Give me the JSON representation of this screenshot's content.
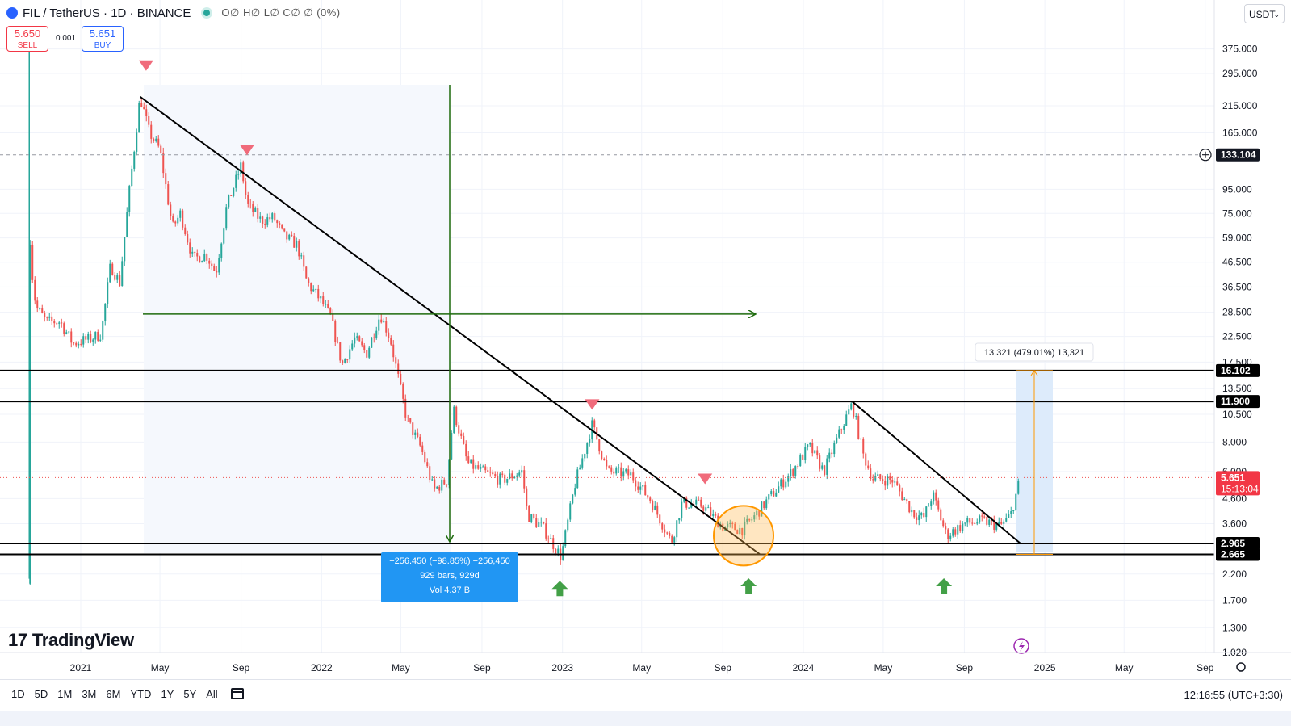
{
  "header": {
    "symbol": "FIL / TetherUS · 1D · BINANCE",
    "ohlc": "O∅ H∅ L∅ C∅ ∅ (0%)"
  },
  "trade": {
    "sell_price": "5.650",
    "sell_label": "SELL",
    "spread": "0.001",
    "buy_price": "5.651",
    "buy_label": "BUY"
  },
  "currency": "USDT",
  "logo_text": "TradingView",
  "ranges": [
    "1D",
    "5D",
    "1M",
    "3M",
    "6M",
    "YTD",
    "1Y",
    "5Y",
    "All"
  ],
  "clock": "12:16:55 (UTC+3:30)",
  "colors": {
    "up": "#26a69a",
    "down": "#ef5350",
    "trendline": "#000000",
    "measure": "#2196f3",
    "arrow_green": "#1e6b0d",
    "projection": "#ff9800"
  },
  "chart_data": {
    "type": "candlestick",
    "scale": "log",
    "x_ticks": [
      "2021",
      "May",
      "Sep",
      "2022",
      "May",
      "Sep",
      "2023",
      "May",
      "Sep",
      "2024",
      "May",
      "Sep",
      "2025",
      "May",
      "Sep"
    ],
    "y_ticks": [
      "375.000",
      "295.000",
      "215.000",
      "165.000",
      "95.000",
      "75.000",
      "59.000",
      "46.500",
      "36.500",
      "28.500",
      "22.500",
      "17.500",
      "13.500",
      "10.500",
      "8.000",
      "6.000",
      "4.600",
      "3.600",
      "2.200",
      "1.700",
      "1.300",
      "1.020"
    ],
    "y_range": [
      0.95,
      480
    ],
    "path": [
      [
        "2020-10-15",
        2.0
      ],
      [
        "2020-10-16",
        60
      ],
      [
        "2020-10-20",
        40
      ],
      [
        "2020-10-25",
        30
      ],
      [
        "2020-11-10",
        26
      ],
      [
        "2020-12-01",
        26
      ],
      [
        "2020-12-20",
        21
      ],
      [
        "2021-01-15",
        22
      ],
      [
        "2021-02-01",
        23
      ],
      [
        "2021-02-15",
        45
      ],
      [
        "2021-03-01",
        38
      ],
      [
        "2021-03-15",
        90
      ],
      [
        "2021-04-01",
        235
      ],
      [
        "2021-04-15",
        165
      ],
      [
        "2021-05-01",
        140
      ],
      [
        "2021-05-20",
        65
      ],
      [
        "2021-06-01",
        75
      ],
      [
        "2021-06-20",
        48
      ],
      [
        "2021-07-10",
        50
      ],
      [
        "2021-07-25",
        42
      ],
      [
        "2021-08-10",
        80
      ],
      [
        "2021-09-01",
        120
      ],
      [
        "2021-09-10",
        82
      ],
      [
        "2021-10-01",
        70
      ],
      [
        "2021-10-20",
        72
      ],
      [
        "2021-11-05",
        60
      ],
      [
        "2021-11-25",
        55
      ],
      [
        "2021-12-10",
        38
      ],
      [
        "2021-12-31",
        32
      ],
      [
        "2022-01-15",
        27
      ],
      [
        "2022-02-01",
        17
      ],
      [
        "2022-02-20",
        22
      ],
      [
        "2022-03-10",
        19
      ],
      [
        "2022-03-31",
        28
      ],
      [
        "2022-04-15",
        22
      ],
      [
        "2022-05-10",
        10
      ],
      [
        "2022-06-01",
        7.5
      ],
      [
        "2022-06-20",
        5.0
      ],
      [
        "2022-07-10",
        5.5
      ],
      [
        "2022-07-20",
        11.0
      ],
      [
        "2022-08-10",
        6.5
      ],
      [
        "2022-09-01",
        6.0
      ],
      [
        "2022-10-01",
        5.5
      ],
      [
        "2022-11-01",
        6.0
      ],
      [
        "2022-11-09",
        3.9
      ],
      [
        "2022-12-01",
        3.5
      ],
      [
        "2022-12-30",
        2.6
      ],
      [
        "2023-01-20",
        5.3
      ],
      [
        "2023-02-15",
        9.5
      ],
      [
        "2023-03-10",
        6.0
      ],
      [
        "2023-04-15",
        5.8
      ],
      [
        "2023-05-15",
        4.5
      ],
      [
        "2023-06-15",
        3.0
      ],
      [
        "2023-07-01",
        4.4
      ],
      [
        "2023-08-01",
        4.3
      ],
      [
        "2023-09-01",
        3.5
      ],
      [
        "2023-10-01",
        3.4
      ],
      [
        "2023-10-20",
        3.9
      ],
      [
        "2023-11-15",
        4.8
      ],
      [
        "2023-12-15",
        6.0
      ],
      [
        "2024-01-10",
        7.7
      ],
      [
        "2024-02-01",
        6.0
      ],
      [
        "2024-03-01",
        9.5
      ],
      [
        "2024-03-15",
        11.6
      ],
      [
        "2024-04-01",
        7.0
      ],
      [
        "2024-04-15",
        5.6
      ],
      [
        "2024-05-15",
        5.5
      ],
      [
        "2024-06-15",
        4.0
      ],
      [
        "2024-07-01",
        3.8
      ],
      [
        "2024-07-15",
        4.8
      ],
      [
        "2024-08-05",
        3.2
      ],
      [
        "2024-09-01",
        3.6
      ],
      [
        "2024-10-01",
        3.7
      ],
      [
        "2024-10-25",
        3.5
      ],
      [
        "2024-11-10",
        3.9
      ],
      [
        "2024-11-25",
        5.65
      ]
    ],
    "horizontal_levels": [
      16.102,
      11.9,
      2.965,
      2.665
    ],
    "level_labels": [
      "16.102",
      "11.900",
      "2.965",
      "2.665"
    ],
    "current_price": "5.651",
    "countdown": "15:13:04",
    "crosshair_price": "133.104",
    "measure_note": {
      "line1": "−256.450 (−98.85%) −256,450",
      "line2": "929 bars, 929d",
      "line3": "Vol 4.37 B"
    },
    "projection_note": "13.321 (479.01%) 13,321",
    "trendlines": [
      {
        "from": [
          "2021-04-01",
          235
        ],
        "to": [
          "2023-10-27",
          2.67
        ]
      },
      {
        "from": [
          "2024-03-15",
          11.9
        ],
        "to": [
          "2024-11-25",
          2.965
        ]
      }
    ],
    "sell_markers": [
      [
        "2021-04-10",
        320
      ],
      [
        "2021-09-10",
        140
      ],
      [
        "2023-02-15",
        11.6
      ],
      [
        "2023-08-05",
        5.6
      ]
    ],
    "buy_markers": [
      [
        "2022-12-28",
        1.9
      ],
      [
        "2023-10-10",
        1.95
      ],
      [
        "2024-08-01",
        1.95
      ]
    ]
  }
}
